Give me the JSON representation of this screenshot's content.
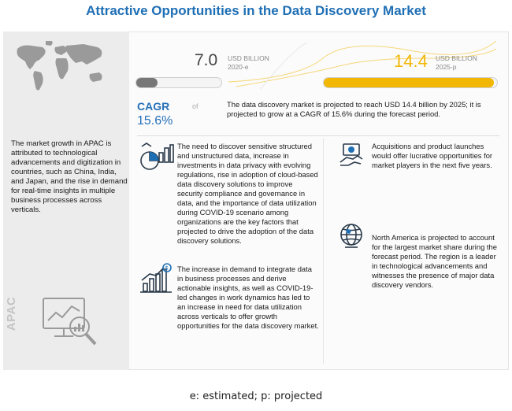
{
  "title": "Attractive Opportunities in the Data Discovery Market",
  "left_panel": {
    "apac_text": "The market growth in APAC is attributed to technological advancements and digitization in countries, such as China, India, and Japan, and the rise in demand for real-time insights in multiple business processes across verticals.",
    "region_label": "APAC"
  },
  "metrics": {
    "start": {
      "value": "7.0",
      "unit": "USD BILLION",
      "year": "2020-e",
      "fill_fraction": 0.25
    },
    "end": {
      "value": "14.4",
      "unit": "USD BILLION",
      "year": "2025-p",
      "fill_fraction": 0.98
    },
    "cagr_label": "CAGR",
    "cagr_of": "of",
    "cagr_value": "15.6%",
    "summary": "The data discovery market is projected to reach USD 14.4 billion by 2025; it is projected to grow at a CAGR of 15.6% during the forecast period."
  },
  "insights": {
    "sensitive_data": "The need to discover sensitive structured and unstructured data, increase in investments in data privacy with evolving regulations, rise in adoption of cloud-based data discovery solutions to improve security compliance and governance in data, and the importance of data utilization during COVID-19 scenario among organizations are the key factors that projected to drive the adoption of the data discovery solutions.",
    "integration": "The increase in demand to integrate data in business processes and derive actionable insights, as well as COVID-19-led changes in work dynamics has led to an increase in need for data utilization across verticals to offer growth opportunities for the data discovery market.",
    "acquisitions": "Acquisitions and product launches would offer lucrative opportunities for market players in the next five years.",
    "north_america": "North America is projected to account for the largest market share during the forecast period. The region is a leader in technological advancements and witnesses the presence of major data discovery vendors."
  },
  "footnote": "e: estimated; p: projected",
  "colors": {
    "title": "#1f6fb5",
    "gold": "#f2b705",
    "gray_bar": "#777777",
    "cagr": "#2670b8"
  }
}
